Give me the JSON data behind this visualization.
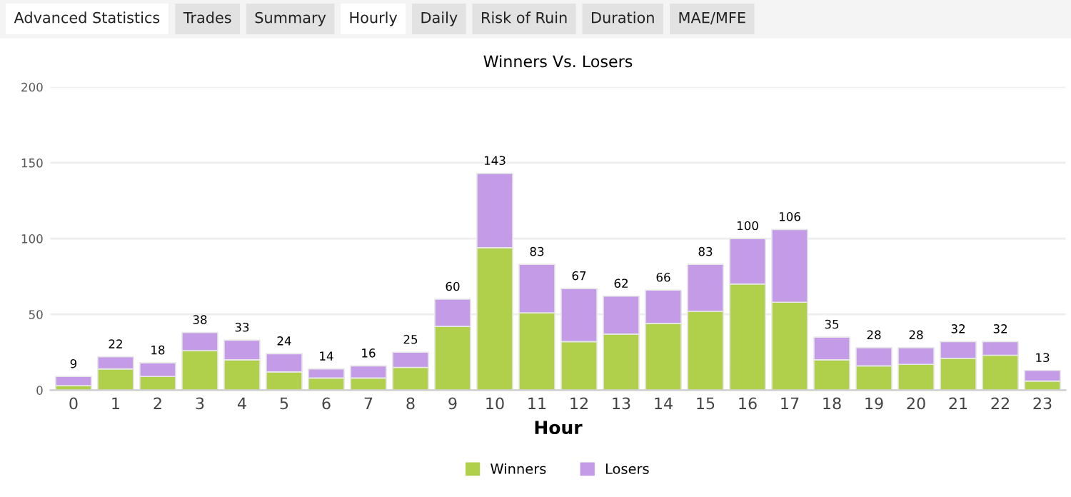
{
  "chart_data": {
    "type": "bar",
    "title": "Winners Vs. Losers",
    "xlabel": "Hour",
    "annotations": [
      "Advanced Statistics",
      "Trades",
      "Summary",
      "Hourly",
      "Daily",
      "Risk of Ruin",
      "Duration",
      "MAE/MFE"
    ],
    "categories": [
      "0",
      "1",
      "2",
      "3",
      "4",
      "5",
      "6",
      "7",
      "8",
      "9",
      "10",
      "11",
      "12",
      "13",
      "14",
      "15",
      "16",
      "17",
      "18",
      "19",
      "20",
      "21",
      "22",
      "23"
    ],
    "stacked": true,
    "series": [
      {
        "name": "Winners",
        "color": "#b0d04b",
        "values": [
          3,
          14,
          9,
          26,
          20,
          12,
          8,
          8,
          15,
          42,
          94,
          51,
          32,
          37,
          44,
          52,
          70,
          58,
          20,
          16,
          17,
          21,
          23,
          6
        ]
      },
      {
        "name": "Losers",
        "color": "#c39be6",
        "values": [
          6,
          8,
          9,
          12,
          13,
          12,
          6,
          8,
          10,
          18,
          49,
          32,
          35,
          25,
          22,
          31,
          30,
          48,
          15,
          12,
          11,
          11,
          9,
          7
        ]
      }
    ],
    "totals": [
      "9",
      "22",
      "18",
      "38",
      "33",
      "24",
      "14",
      "16",
      "25",
      "60",
      "143",
      "83",
      "67",
      "62",
      "66",
      "83",
      "100",
      "106",
      "35",
      "28",
      "28",
      "32",
      "32",
      "13"
    ],
    "ylim": [
      0,
      200
    ],
    "yticks": [
      0,
      50,
      100,
      150,
      200
    ],
    "grid": "y",
    "legend": "bottom"
  }
}
